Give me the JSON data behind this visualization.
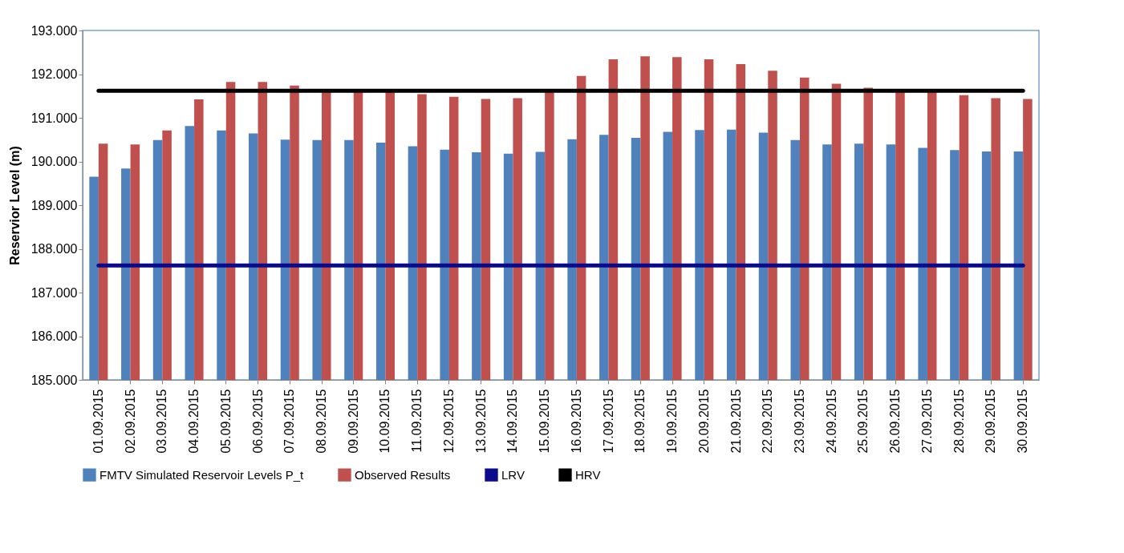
{
  "chart_data": {
    "type": "bar",
    "ylabel": "Reservior Level (m)",
    "legend": "bottom",
    "grid": false,
    "categories": [
      "01.09.2015",
      "02.09.2015",
      "03.09.2015",
      "04.09.2015",
      "05.09.2015",
      "06.09.2015",
      "07.09.2015",
      "08.09.2015",
      "09.09.2015",
      "10.09.2015",
      "11.09.2015",
      "12.09.2015",
      "13.09.2015",
      "14.09.2015",
      "15.09.2015",
      "16.09.2015",
      "17.09.2015",
      "18.09.2015",
      "19.09.2015",
      "20.09.2015",
      "21.09.2015",
      "22.09.2015",
      "23.09.2015",
      "24.09.2015",
      "25.09.2015",
      "26.09.2015",
      "27.09.2015",
      "28.09.2015",
      "29.09.2015",
      "30.09.2015"
    ],
    "ylim": [
      185,
      193
    ],
    "yticks": [
      {
        "value": 185,
        "label": "185.000"
      },
      {
        "value": 186,
        "label": "186.000"
      },
      {
        "value": 187,
        "label": "187.000"
      },
      {
        "value": 188,
        "label": "188.000"
      },
      {
        "value": 189,
        "label": "189.000"
      },
      {
        "value": 190,
        "label": "190.000"
      },
      {
        "value": 191,
        "label": "191.000"
      },
      {
        "value": 192,
        "label": "192.000"
      },
      {
        "value": 193,
        "label": "193.000"
      }
    ],
    "series": [
      {
        "name": "FMTV Simulated Reservoir Levels P_t",
        "color": "#4f81bd",
        "values": [
          189.65,
          189.84,
          190.49,
          190.81,
          190.71,
          190.64,
          190.5,
          190.49,
          190.49,
          190.43,
          190.35,
          190.27,
          190.21,
          190.18,
          190.22,
          190.51,
          190.61,
          190.54,
          190.68,
          190.72,
          190.73,
          190.66,
          190.49,
          190.39,
          190.41,
          190.39,
          190.31,
          190.26,
          190.23,
          190.23
        ]
      },
      {
        "name": "Observed Results",
        "color": "#c0504d",
        "values": [
          190.41,
          190.39,
          190.71,
          191.42,
          191.82,
          191.82,
          191.74,
          191.6,
          191.6,
          191.6,
          191.54,
          191.48,
          191.43,
          191.45,
          191.6,
          191.96,
          192.34,
          192.41,
          192.39,
          192.34,
          192.23,
          192.08,
          191.92,
          191.78,
          191.69,
          191.6,
          191.6,
          191.52,
          191.45,
          191.43
        ]
      },
      {
        "name": "LRV",
        "type": "line",
        "color": "#0a0a8c",
        "values": [
          187.62,
          187.62,
          187.62,
          187.62,
          187.62,
          187.62,
          187.62,
          187.62,
          187.62,
          187.62,
          187.62,
          187.62,
          187.62,
          187.62,
          187.62,
          187.62,
          187.62,
          187.62,
          187.62,
          187.62,
          187.62,
          187.62,
          187.62,
          187.62,
          187.62,
          187.62,
          187.62,
          187.62,
          187.62,
          187.62
        ]
      },
      {
        "name": "HRV",
        "type": "line",
        "color": "#000000",
        "values": [
          191.62,
          191.62,
          191.62,
          191.62,
          191.62,
          191.62,
          191.62,
          191.62,
          191.62,
          191.62,
          191.62,
          191.62,
          191.62,
          191.62,
          191.62,
          191.62,
          191.62,
          191.62,
          191.62,
          191.62,
          191.62,
          191.62,
          191.62,
          191.62,
          191.62,
          191.62,
          191.62,
          191.62,
          191.62,
          191.62
        ]
      }
    ]
  }
}
